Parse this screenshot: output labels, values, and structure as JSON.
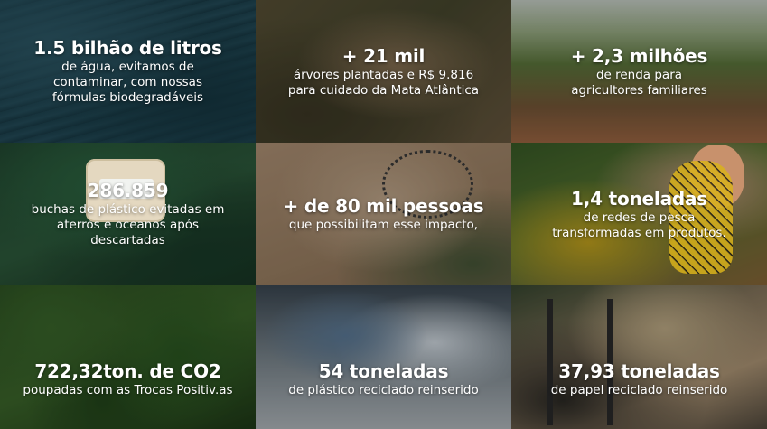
{
  "tiles": [
    {
      "headline": "1.5 bilhão de litros",
      "desc": [
        "de água, evitamos de",
        "contaminar, com nossas",
        "fórmulas biodegradáveis"
      ]
    },
    {
      "headline": "+ 21 mil",
      "desc": [
        "árvores plantadas e R$ 9.816",
        "para cuidado da Mata Atlântica"
      ]
    },
    {
      "headline": "+ 2,3 milhões",
      "desc": [
        "de renda para",
        "agricultores familiares"
      ]
    },
    {
      "headline": "286.859",
      "desc": [
        "buchas de plástico evitadas em",
        "aterros e oceanos após",
        "descartadas"
      ]
    },
    {
      "headline": "+ de 80 mil pessoas",
      "desc": [
        "que possibilitam esse impacto,"
      ]
    },
    {
      "headline": "1,4 toneladas",
      "desc": [
        "de redes de pesca",
        "transformadas em produtos."
      ]
    },
    {
      "headline": "722,32ton. de CO2",
      "desc": [
        "poupadas com as Trocas Positiv.as"
      ]
    },
    {
      "headline": "54 toneladas",
      "desc": [
        "de plástico reciclado reinserido"
      ]
    },
    {
      "headline": "37,93 toneladas",
      "desc": [
        "de papel reciclado reinserido"
      ]
    }
  ],
  "product_label": "positiva"
}
